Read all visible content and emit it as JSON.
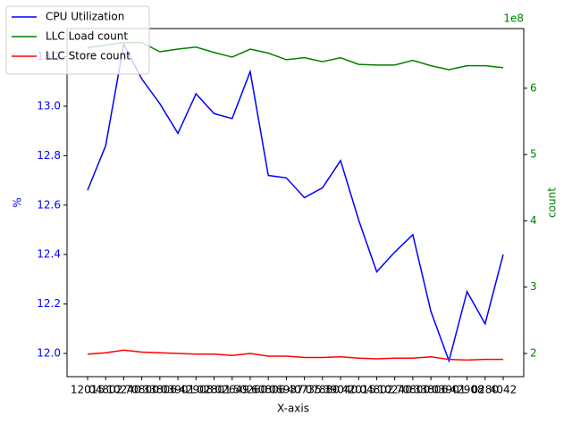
{
  "chart_data": {
    "type": "line",
    "x_label": "X-axis",
    "y_label": "%",
    "y2_label": "count",
    "y2_offset": "1e8",
    "categories": [
      "12015",
      "04802",
      "10240",
      "70800",
      "33806",
      "03901",
      "42908",
      "02801",
      "02649",
      "50260",
      "60806",
      "06937",
      "40735",
      "07880",
      "39040",
      "42015",
      "04802",
      "10240",
      "70800",
      "33806",
      "03901",
      "42908",
      "0280",
      "4042"
    ],
    "series": [
      {
        "name": "CPU Utilization",
        "color": "#0000ff",
        "axis": "y",
        "values": [
          12.66,
          12.84,
          13.25,
          13.11,
          13.01,
          12.89,
          13.05,
          12.97,
          12.95,
          13.14,
          12.72,
          12.71,
          12.63,
          12.67,
          12.78,
          12.54,
          12.33,
          12.41,
          12.48,
          12.17,
          11.97,
          12.25,
          12.12,
          12.4
        ]
      },
      {
        "name": "LLC Load count",
        "color": "#008000",
        "axis": "y2",
        "values": [
          661000000,
          665000000,
          669000000,
          669000000,
          655000000,
          659000000,
          662000000,
          654000000,
          647000000,
          659000000,
          653000000,
          643000000,
          646000000,
          640000000,
          646000000,
          636000000,
          635000000,
          635000000,
          642000000,
          634000000,
          628000000,
          634000000,
          634000000,
          631000000
        ]
      },
      {
        "name": "LLC Store count",
        "color": "#ff0000",
        "axis": "y2",
        "values": [
          199000000,
          201000000,
          205000000,
          202000000,
          201000000,
          200000000,
          199000000,
          199000000,
          197000000,
          200000000,
          196000000,
          196000000,
          194000000,
          194000000,
          195000000,
          193000000,
          192000000,
          193000000,
          193000000,
          195000000,
          191000000,
          190000000,
          191000000,
          191000000
        ]
      }
    ],
    "ylim": [
      11.906,
      13.314
    ],
    "yticks": [
      {
        "value": 12.0,
        "label": "12.0"
      },
      12.2,
      12.4,
      12.6,
      12.8,
      {
        "value": 13.0,
        "label": "13.0"
      },
      13.2
    ],
    "y2lim": [
      165000000,
      690000000
    ],
    "y2ticks": [
      {
        "value": 200000000,
        "label": "2"
      },
      {
        "value": 300000000,
        "label": "3"
      },
      {
        "value": 400000000,
        "label": "4"
      },
      {
        "value": 500000000,
        "label": "5"
      },
      {
        "value": 600000000,
        "label": "6"
      }
    ],
    "legend": "upper left"
  }
}
